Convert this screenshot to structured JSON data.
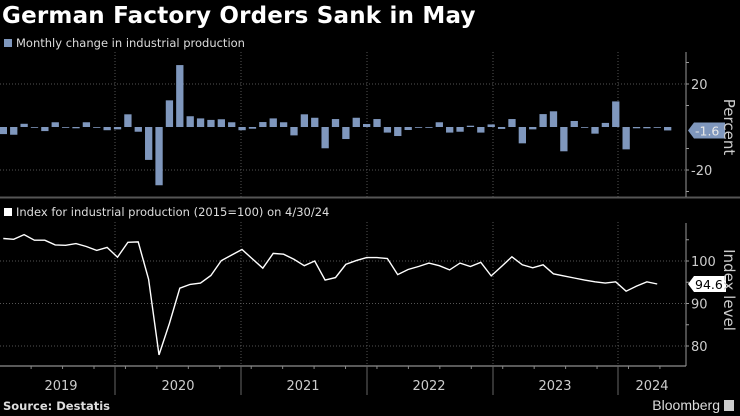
{
  "title": "German Factory Orders Sank in May",
  "source": "Source: Destatis",
  "brand": "Bloomberg",
  "colors": {
    "background": "#000000",
    "bar": "#7f97bd",
    "line": "#ffffff",
    "grid": "#555555"
  },
  "chart_data": [
    {
      "type": "bar",
      "legend": "Monthly change in industrial production",
      "ylabel": "Percent",
      "ylim": [
        -30,
        33
      ],
      "yticks": [
        20,
        -20
      ],
      "grid": true,
      "last_value_label": "-1.6",
      "x_start": "2019-01",
      "x_end": "2024-05",
      "values": [
        -3.3,
        -3.6,
        1.5,
        -0.2,
        -1.9,
        2.2,
        -0.3,
        -0.6,
        2.2,
        -0.3,
        -1.5,
        -1.1,
        5.9,
        -2.2,
        -15.3,
        -27.1,
        12.4,
        28.8,
        5.0,
        4.0,
        3.3,
        3.6,
        2.2,
        -1.5,
        -0.8,
        2.3,
        4.0,
        2.2,
        -3.9,
        5.9,
        4.3,
        -9.9,
        3.7,
        -5.6,
        4.3,
        1.4,
        3.7,
        -2.6,
        -4.2,
        -1.4,
        -0.2,
        -0.2,
        2.2,
        -2.6,
        -2.2,
        0.6,
        -2.6,
        1.2,
        -0.9,
        3.7,
        -7.6,
        -1.1,
        6.0,
        7.3,
        -11.3,
        2.8,
        -0.3,
        -3.1,
        1.9,
        11.9,
        -10.4,
        -0.6,
        -0.6,
        -0.3,
        -1.6
      ]
    },
    {
      "type": "line",
      "legend": "Index for industrial production (2015=100) on 4/30/24",
      "ylabel": "Index level",
      "ylim": [
        75,
        109
      ],
      "yticks": [
        100,
        90,
        80
      ],
      "grid": true,
      "last_value_label": "94.6",
      "x_start": "2019-01",
      "x_end": "2024-04",
      "values": [
        105.3,
        105.1,
        106.2,
        104.9,
        104.9,
        103.8,
        103.7,
        104.1,
        103.4,
        102.5,
        103.2,
        100.9,
        104.4,
        104.5,
        95.7,
        77.9,
        85.3,
        93.6,
        94.5,
        94.8,
        96.6,
        100.1,
        101.4,
        102.7,
        100.5,
        98.3,
        101.8,
        101.6,
        100.4,
        98.9,
        100.0,
        95.5,
        96.1,
        99.2,
        100.1,
        100.8,
        100.8,
        100.6,
        96.8,
        98.0,
        98.7,
        99.5,
        98.9,
        97.9,
        99.5,
        98.7,
        99.7,
        96.5,
        98.7,
        101.0,
        99.1,
        98.4,
        99.1,
        97.0,
        96.5,
        96.0,
        95.5,
        95.1,
        94.8,
        95.1,
        92.9,
        94.1,
        95.1,
        94.6
      ]
    }
  ],
  "x_axis": {
    "year_labels": [
      "2019",
      "2020",
      "2021",
      "2022",
      "2023",
      "2024"
    ]
  }
}
